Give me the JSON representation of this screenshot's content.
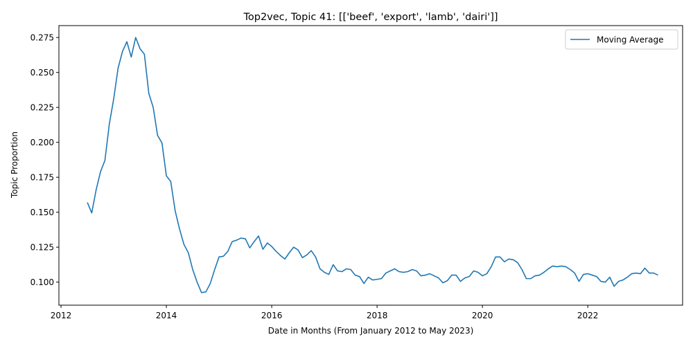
{
  "chart_data": {
    "type": "line",
    "title": "Top2vec, Topic 41: [['beef', 'export', 'lamb', 'dairi']]",
    "xlabel": "Date in Months (From January 2012 to May 2023)",
    "ylabel": "Topic Proportion",
    "xlim": [
      2011.96,
      2023.8
    ],
    "ylim": [
      0.0835,
      0.2835
    ],
    "x_ticks": [
      2012,
      2014,
      2016,
      2018,
      2020,
      2022
    ],
    "x_tick_labels": [
      "2012",
      "2014",
      "2016",
      "2018",
      "2020",
      "2022"
    ],
    "y_ticks": [
      0.1,
      0.125,
      0.15,
      0.175,
      0.2,
      0.225,
      0.25,
      0.275
    ],
    "y_tick_labels": [
      "0.100",
      "0.125",
      "0.150",
      "0.175",
      "0.200",
      "0.225",
      "0.250",
      "0.275"
    ],
    "legend": {
      "position": "top-right",
      "entries": [
        "Moving Average"
      ]
    },
    "grid": false,
    "line_color": "#1f77b4",
    "series": [
      {
        "name": "Moving Average",
        "x": [
          2012.5,
          2012.583,
          2012.667,
          2012.75,
          2012.833,
          2012.917,
          2013.0,
          2013.083,
          2013.167,
          2013.25,
          2013.333,
          2013.417,
          2013.5,
          2013.583,
          2013.667,
          2013.75,
          2013.833,
          2013.917,
          2014.0,
          2014.083,
          2014.167,
          2014.25,
          2014.333,
          2014.417,
          2014.5,
          2014.583,
          2014.667,
          2014.75,
          2014.833,
          2014.917,
          2015.0,
          2015.083,
          2015.167,
          2015.25,
          2015.333,
          2015.417,
          2015.5,
          2015.583,
          2015.667,
          2015.75,
          2015.833,
          2015.917,
          2016.0,
          2016.083,
          2016.167,
          2016.25,
          2016.333,
          2016.417,
          2016.5,
          2016.583,
          2016.667,
          2016.75,
          2016.833,
          2016.917,
          2017.0,
          2017.083,
          2017.167,
          2017.25,
          2017.333,
          2017.417,
          2017.5,
          2017.583,
          2017.667,
          2017.75,
          2017.833,
          2017.917,
          2018.0,
          2018.083,
          2018.167,
          2018.25,
          2018.333,
          2018.417,
          2018.5,
          2018.583,
          2018.667,
          2018.75,
          2018.833,
          2018.917,
          2019.0,
          2019.083,
          2019.167,
          2019.25,
          2019.333,
          2019.417,
          2019.5,
          2019.583,
          2019.667,
          2019.75,
          2019.833,
          2019.917,
          2020.0,
          2020.083,
          2020.167,
          2020.25,
          2020.333,
          2020.417,
          2020.5,
          2020.583,
          2020.667,
          2020.75,
          2020.833,
          2020.917,
          2021.0,
          2021.083,
          2021.167,
          2021.25,
          2021.333,
          2021.417,
          2021.5,
          2021.583,
          2021.667,
          2021.75,
          2021.833,
          2021.917,
          2022.0,
          2022.083,
          2022.167,
          2022.25,
          2022.333,
          2022.417,
          2022.5,
          2022.583,
          2022.667,
          2022.75,
          2022.833,
          2022.917,
          2023.0,
          2023.083,
          2023.167,
          2023.25,
          2023.333
        ],
        "y": [
          0.157,
          0.1495,
          0.166,
          0.179,
          0.187,
          0.213,
          0.231,
          0.253,
          0.265,
          0.272,
          0.261,
          0.275,
          0.267,
          0.263,
          0.235,
          0.225,
          0.205,
          0.1995,
          0.176,
          0.172,
          0.151,
          0.138,
          0.127,
          0.121,
          0.109,
          0.1,
          0.0925,
          0.093,
          0.099,
          0.109,
          0.118,
          0.1185,
          0.122,
          0.129,
          0.13,
          0.1315,
          0.131,
          0.1245,
          0.129,
          0.133,
          0.1235,
          0.128,
          0.1255,
          0.122,
          0.119,
          0.1165,
          0.121,
          0.125,
          0.123,
          0.1175,
          0.1195,
          0.1225,
          0.118,
          0.1095,
          0.107,
          0.1055,
          0.1125,
          0.108,
          0.1075,
          0.1095,
          0.109,
          0.105,
          0.104,
          0.099,
          0.1035,
          0.1015,
          0.102,
          0.1025,
          0.1065,
          0.108,
          0.1095,
          0.1075,
          0.107,
          0.1075,
          0.109,
          0.108,
          0.1045,
          0.105,
          0.106,
          0.1045,
          0.103,
          0.0995,
          0.101,
          0.105,
          0.105,
          0.1005,
          0.103,
          0.104,
          0.108,
          0.107,
          0.1045,
          0.106,
          0.111,
          0.118,
          0.118,
          0.1145,
          0.1165,
          0.116,
          0.114,
          0.109,
          0.1025,
          0.1025,
          0.1045,
          0.105,
          0.107,
          0.1095,
          0.1115,
          0.111,
          0.1115,
          0.111,
          0.109,
          0.1065,
          0.1005,
          0.1055,
          0.106,
          0.105,
          0.104,
          0.1005,
          0.1,
          0.1035,
          0.097,
          0.1005,
          0.1015,
          0.1035,
          0.106,
          0.1065,
          0.106,
          0.11,
          0.1065,
          0.1065,
          0.105
        ]
      }
    ]
  }
}
